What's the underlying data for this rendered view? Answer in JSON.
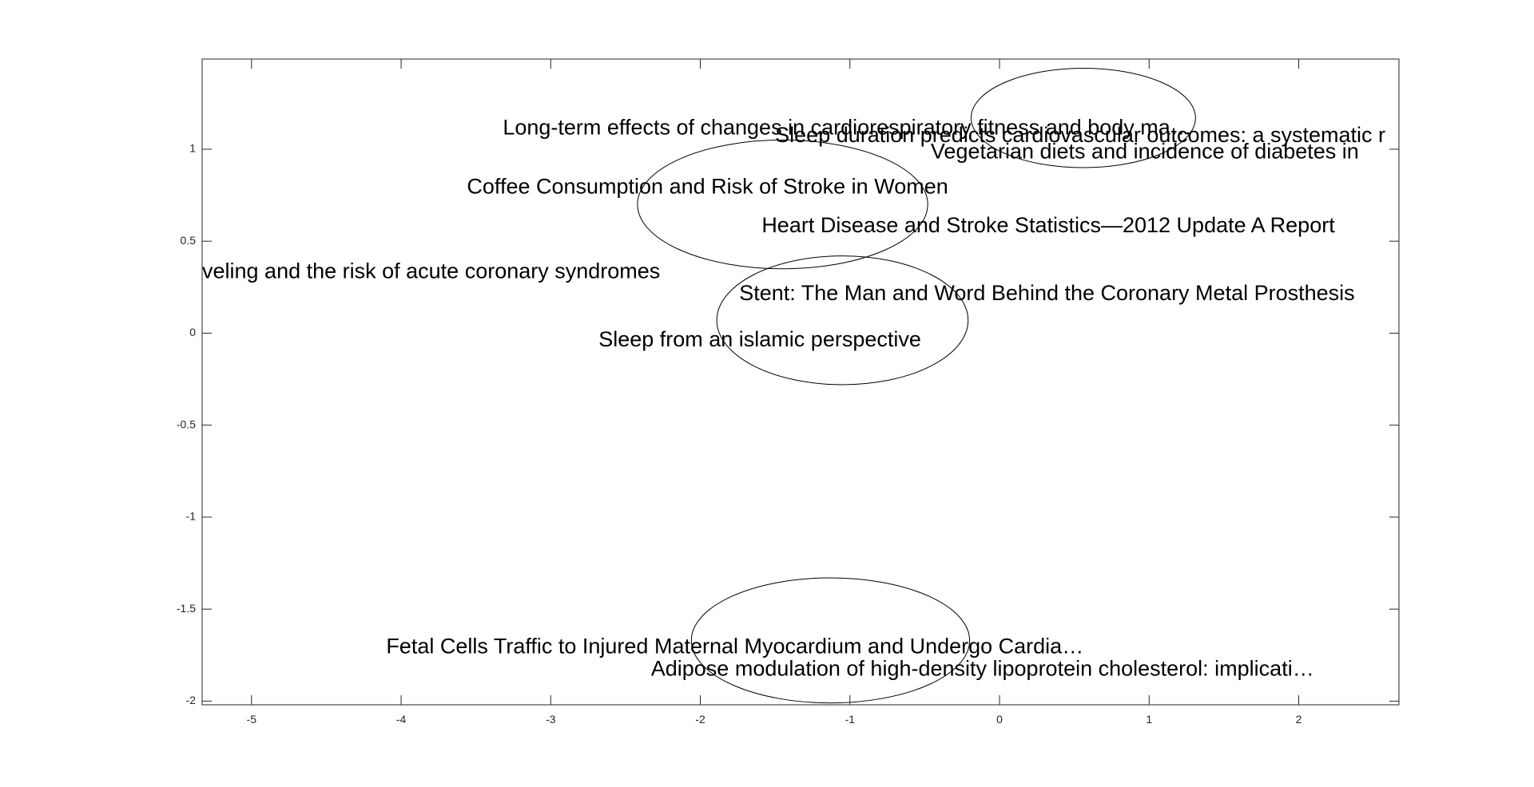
{
  "chart_data": {
    "type": "scatter",
    "title": "",
    "xlabel": "",
    "ylabel": "",
    "xlim": [
      -5.33,
      2.67
    ],
    "ylim": [
      -2.02,
      1.49
    ],
    "x_ticks": [
      -5,
      -4,
      -3,
      -2,
      -1,
      0,
      1,
      2
    ],
    "y_ticks": [
      -2,
      -1.5,
      -1,
      -0.5,
      0,
      0.5,
      1
    ],
    "x_tick_labels": [
      "-5",
      "-4",
      "-3",
      "-2",
      "-1",
      "0",
      "1",
      "2"
    ],
    "y_tick_labels": [
      "-2",
      "-1.5",
      "-1",
      "-0.5",
      "0",
      "0.5",
      "1"
    ],
    "grid": false,
    "points": [
      {
        "x": -1.5,
        "y": 1.07,
        "label": "Sleep duration predicts cardiovascular outcomes: a systematic r"
      },
      {
        "x": -3.32,
        "y": 1.11,
        "label": "Long-term effects of changes in cardiorespiratory fitness and body ma…"
      },
      {
        "x": -0.46,
        "y": 0.98,
        "label": "Vegetarian diets and incidence of diabetes in"
      },
      {
        "x": -3.56,
        "y": 0.79,
        "label": "Coffee Consumption and Risk of Stroke in Women"
      },
      {
        "x": -1.59,
        "y": 0.58,
        "label": "Heart Disease and Stroke Statistics—2012 Update A Report"
      },
      {
        "x": -5.33,
        "y": 0.33,
        "label": "veling and the risk of acute coronary syndromes"
      },
      {
        "x": -1.74,
        "y": 0.21,
        "label": "Stent: The Man and Word Behind the Coronary Metal Prosthesis"
      },
      {
        "x": -2.68,
        "y": -0.04,
        "label": "Sleep from an islamic perspective"
      },
      {
        "x": -4.1,
        "y": -1.71,
        "label": "Fetal Cells Traffic to Injured Maternal Myocardium and Undergo Cardia…"
      },
      {
        "x": -2.33,
        "y": -1.83,
        "label": "Adipose modulation of high-density lipoprotein cholesterol: implicati…"
      }
    ],
    "ellipses": [
      {
        "cx": 0.56,
        "cy": 1.17,
        "rx": 0.75,
        "ry": 0.27
      },
      {
        "cx": -1.45,
        "cy": 0.7,
        "rx": 0.97,
        "ry": 0.35
      },
      {
        "cx": -1.05,
        "cy": 0.07,
        "rx": 0.84,
        "ry": 0.35
      },
      {
        "cx": -1.13,
        "cy": -1.67,
        "rx": 0.93,
        "ry": 0.34
      }
    ]
  }
}
